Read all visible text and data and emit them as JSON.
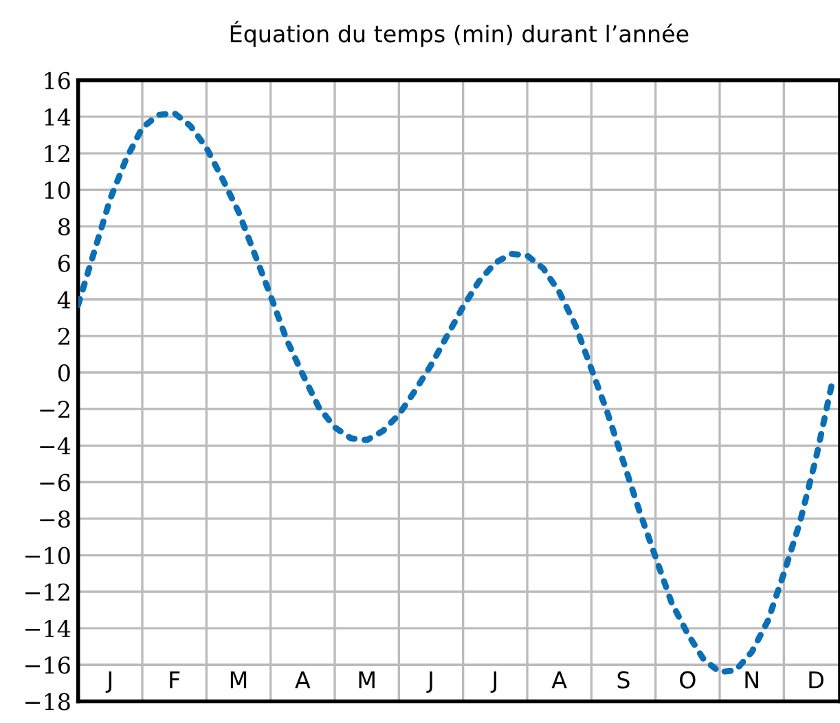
{
  "chart_data": {
    "type": "line",
    "title": "Équation du temps (min) durant l’année",
    "categories": [
      null,
      null,
      "J",
      null,
      null,
      null,
      "F",
      null,
      null,
      null,
      "M",
      null,
      null,
      null,
      "A",
      null,
      null,
      null,
      "M",
      null,
      null,
      null,
      "J",
      null,
      null,
      null,
      "J",
      null,
      null,
      null,
      "A",
      null,
      null,
      null,
      "S",
      null,
      null,
      null,
      "O",
      null,
      null,
      null,
      "N",
      null,
      null,
      null,
      "D",
      null
    ],
    "series": [
      {
        "color": "#0b6fb5",
        "values": [
          3.7,
          6.6,
          9.5,
          11.7,
          13.4,
          14.1,
          14.2,
          13.5,
          12.3,
          10.6,
          8.8,
          6.5,
          4.2,
          1.8,
          -0.1,
          -1.9,
          -3.0,
          -3.6,
          -3.7,
          -3.2,
          -2.3,
          -1.0,
          0.4,
          2.0,
          3.6,
          5.0,
          6.0,
          6.5,
          6.4,
          5.7,
          4.4,
          2.6,
          0.2,
          -2.2,
          -4.9,
          -7.6,
          -10.1,
          -12.6,
          -14.3,
          -15.7,
          -16.4,
          -16.3,
          -15.3,
          -13.6,
          -11.0,
          -8.2,
          -4.7,
          -0.6
        ]
      }
    ],
    "ylim": [
      -18,
      16
    ],
    "yticks": [
      -18,
      -16,
      -14,
      -12,
      -10,
      -8,
      -6,
      -4,
      -2,
      0,
      2,
      4,
      6,
      8,
      10,
      12,
      14,
      16
    ],
    "grid": true,
    "line_style": "dotted",
    "legend": false
  }
}
